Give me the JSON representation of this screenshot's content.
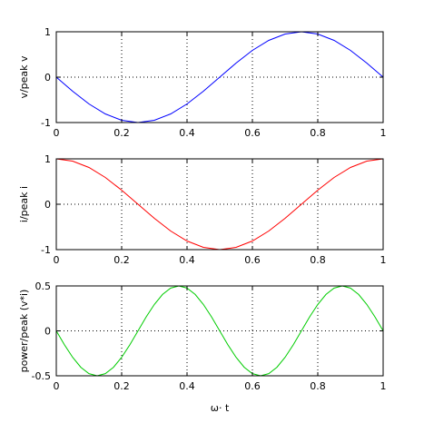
{
  "chart_data": [
    {
      "type": "line",
      "ylabel": "v/peak v",
      "xlim": [
        0,
        1
      ],
      "ylim": [
        -1,
        1
      ],
      "xticks": [
        0,
        0.2,
        0.4,
        0.6,
        0.8,
        1
      ],
      "xtick_labels": [
        "0",
        "0.2",
        "0.4",
        "0.6",
        "0.8",
        "1"
      ],
      "yticks": [
        -1,
        0,
        1
      ],
      "ytick_labels": [
        "-1",
        "0",
        "1"
      ],
      "grid": true,
      "series": [
        {
          "color": "#0000ff",
          "x": [
            0,
            0.05,
            0.1,
            0.15,
            0.2,
            0.25,
            0.3,
            0.35,
            0.4,
            0.45,
            0.5,
            0.55,
            0.6,
            0.65,
            0.7,
            0.75,
            0.8,
            0.85,
            0.9,
            0.95,
            1
          ],
          "y": [
            0,
            -0.31,
            -0.59,
            -0.81,
            -0.95,
            -1,
            -0.95,
            -0.81,
            -0.59,
            -0.31,
            0,
            0.31,
            0.59,
            0.81,
            0.95,
            1,
            0.95,
            0.81,
            0.59,
            0.31,
            0
          ]
        }
      ]
    },
    {
      "type": "line",
      "ylabel": "i/peak i",
      "xlim": [
        0,
        1
      ],
      "ylim": [
        -1,
        1
      ],
      "xticks": [
        0,
        0.2,
        0.4,
        0.6,
        0.8,
        1
      ],
      "xtick_labels": [
        "0",
        "0.2",
        "0.4",
        "0.6",
        "0.8",
        "1"
      ],
      "yticks": [
        -1,
        0,
        1
      ],
      "ytick_labels": [
        "-1",
        "0",
        "1"
      ],
      "grid": true,
      "series": [
        {
          "color": "#ff0000",
          "x": [
            0,
            0.05,
            0.1,
            0.15,
            0.2,
            0.25,
            0.3,
            0.35,
            0.4,
            0.45,
            0.5,
            0.55,
            0.6,
            0.65,
            0.7,
            0.75,
            0.8,
            0.85,
            0.9,
            0.95,
            1
          ],
          "y": [
            1,
            0.95,
            0.81,
            0.59,
            0.31,
            0,
            -0.31,
            -0.59,
            -0.81,
            -0.95,
            -1,
            -0.95,
            -0.81,
            -0.59,
            -0.31,
            0,
            0.31,
            0.59,
            0.81,
            0.95,
            1
          ]
        }
      ]
    },
    {
      "type": "line",
      "ylabel": "power/peak (v*i)",
      "xlabel": "ω· t",
      "xlim": [
        0,
        1
      ],
      "ylim": [
        -0.5,
        0.5
      ],
      "xticks": [
        0,
        0.2,
        0.4,
        0.6,
        0.8,
        1
      ],
      "xtick_labels": [
        "0",
        "0.2",
        "0.4",
        "0.6",
        "0.8",
        "1"
      ],
      "yticks": [
        -0.5,
        0,
        0.5
      ],
      "ytick_labels": [
        "-0.5",
        "0",
        "0.5"
      ],
      "grid": true,
      "series": [
        {
          "color": "#00cc00",
          "x": [
            0,
            0.025,
            0.05,
            0.075,
            0.1,
            0.125,
            0.15,
            0.175,
            0.2,
            0.225,
            0.25,
            0.275,
            0.3,
            0.325,
            0.35,
            0.375,
            0.4,
            0.425,
            0.45,
            0.475,
            0.5,
            0.525,
            0.55,
            0.575,
            0.6,
            0.625,
            0.65,
            0.675,
            0.7,
            0.725,
            0.75,
            0.775,
            0.8,
            0.825,
            0.85,
            0.875,
            0.9,
            0.925,
            0.95,
            0.975,
            1
          ],
          "y": [
            0,
            -0.155,
            -0.294,
            -0.405,
            -0.476,
            -0.5,
            -0.476,
            -0.405,
            -0.294,
            -0.155,
            0,
            0.155,
            0.294,
            0.405,
            0.476,
            0.5,
            0.476,
            0.405,
            0.294,
            0.155,
            0,
            -0.155,
            -0.294,
            -0.405,
            -0.476,
            -0.5,
            -0.476,
            -0.405,
            -0.294,
            -0.155,
            0,
            0.155,
            0.294,
            0.405,
            0.476,
            0.5,
            0.476,
            0.405,
            0.294,
            0.155,
            0
          ]
        }
      ]
    }
  ]
}
